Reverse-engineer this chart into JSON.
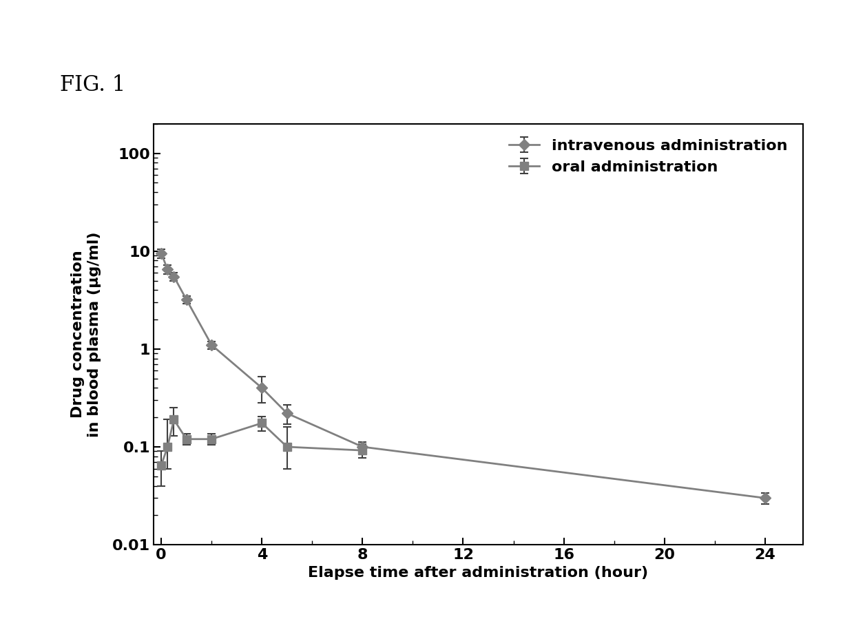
{
  "fig_label": "FIG. 1",
  "xlabel": "Elapse time after administration (hour)",
  "ylabel": "Drug concentration\nin blood plasma (μg/ml)",
  "background_color": "#ffffff",
  "line_color": "#808080",
  "ylim": [
    0.01,
    200
  ],
  "xlim": [
    -0.3,
    25.5
  ],
  "xticks": [
    0,
    4,
    8,
    12,
    16,
    20,
    24
  ],
  "iv": {
    "label": "intravenous administration",
    "x": [
      0,
      0.25,
      0.5,
      1,
      2,
      4,
      5,
      8,
      24
    ],
    "y": [
      9.5,
      6.5,
      5.5,
      3.2,
      1.1,
      0.4,
      0.22,
      0.1,
      0.03
    ],
    "yerr_lo": [
      1.0,
      0.7,
      0.5,
      0.3,
      0.1,
      0.12,
      0.05,
      0.012,
      0.004
    ],
    "yerr_hi": [
      1.0,
      0.7,
      0.5,
      0.3,
      0.1,
      0.12,
      0.05,
      0.012,
      0.004
    ],
    "marker": "D",
    "markersize": 8,
    "linewidth": 2.0
  },
  "oral": {
    "label": "oral administration",
    "x": [
      0,
      0.25,
      0.5,
      1,
      2,
      4,
      5,
      8
    ],
    "y": [
      0.065,
      0.1,
      0.19,
      0.12,
      0.12,
      0.175,
      0.1,
      0.092
    ],
    "yerr_lo": [
      0.025,
      0.04,
      0.06,
      0.015,
      0.015,
      0.03,
      0.04,
      0.015
    ],
    "yerr_hi": [
      0.025,
      0.09,
      0.06,
      0.015,
      0.015,
      0.03,
      0.06,
      0.015
    ],
    "marker": "s",
    "markersize": 8,
    "linewidth": 2.0
  },
  "legend_fontsize": 16,
  "axis_label_fontsize": 16,
  "tick_fontsize": 16,
  "fig_label_fontsize": 22
}
